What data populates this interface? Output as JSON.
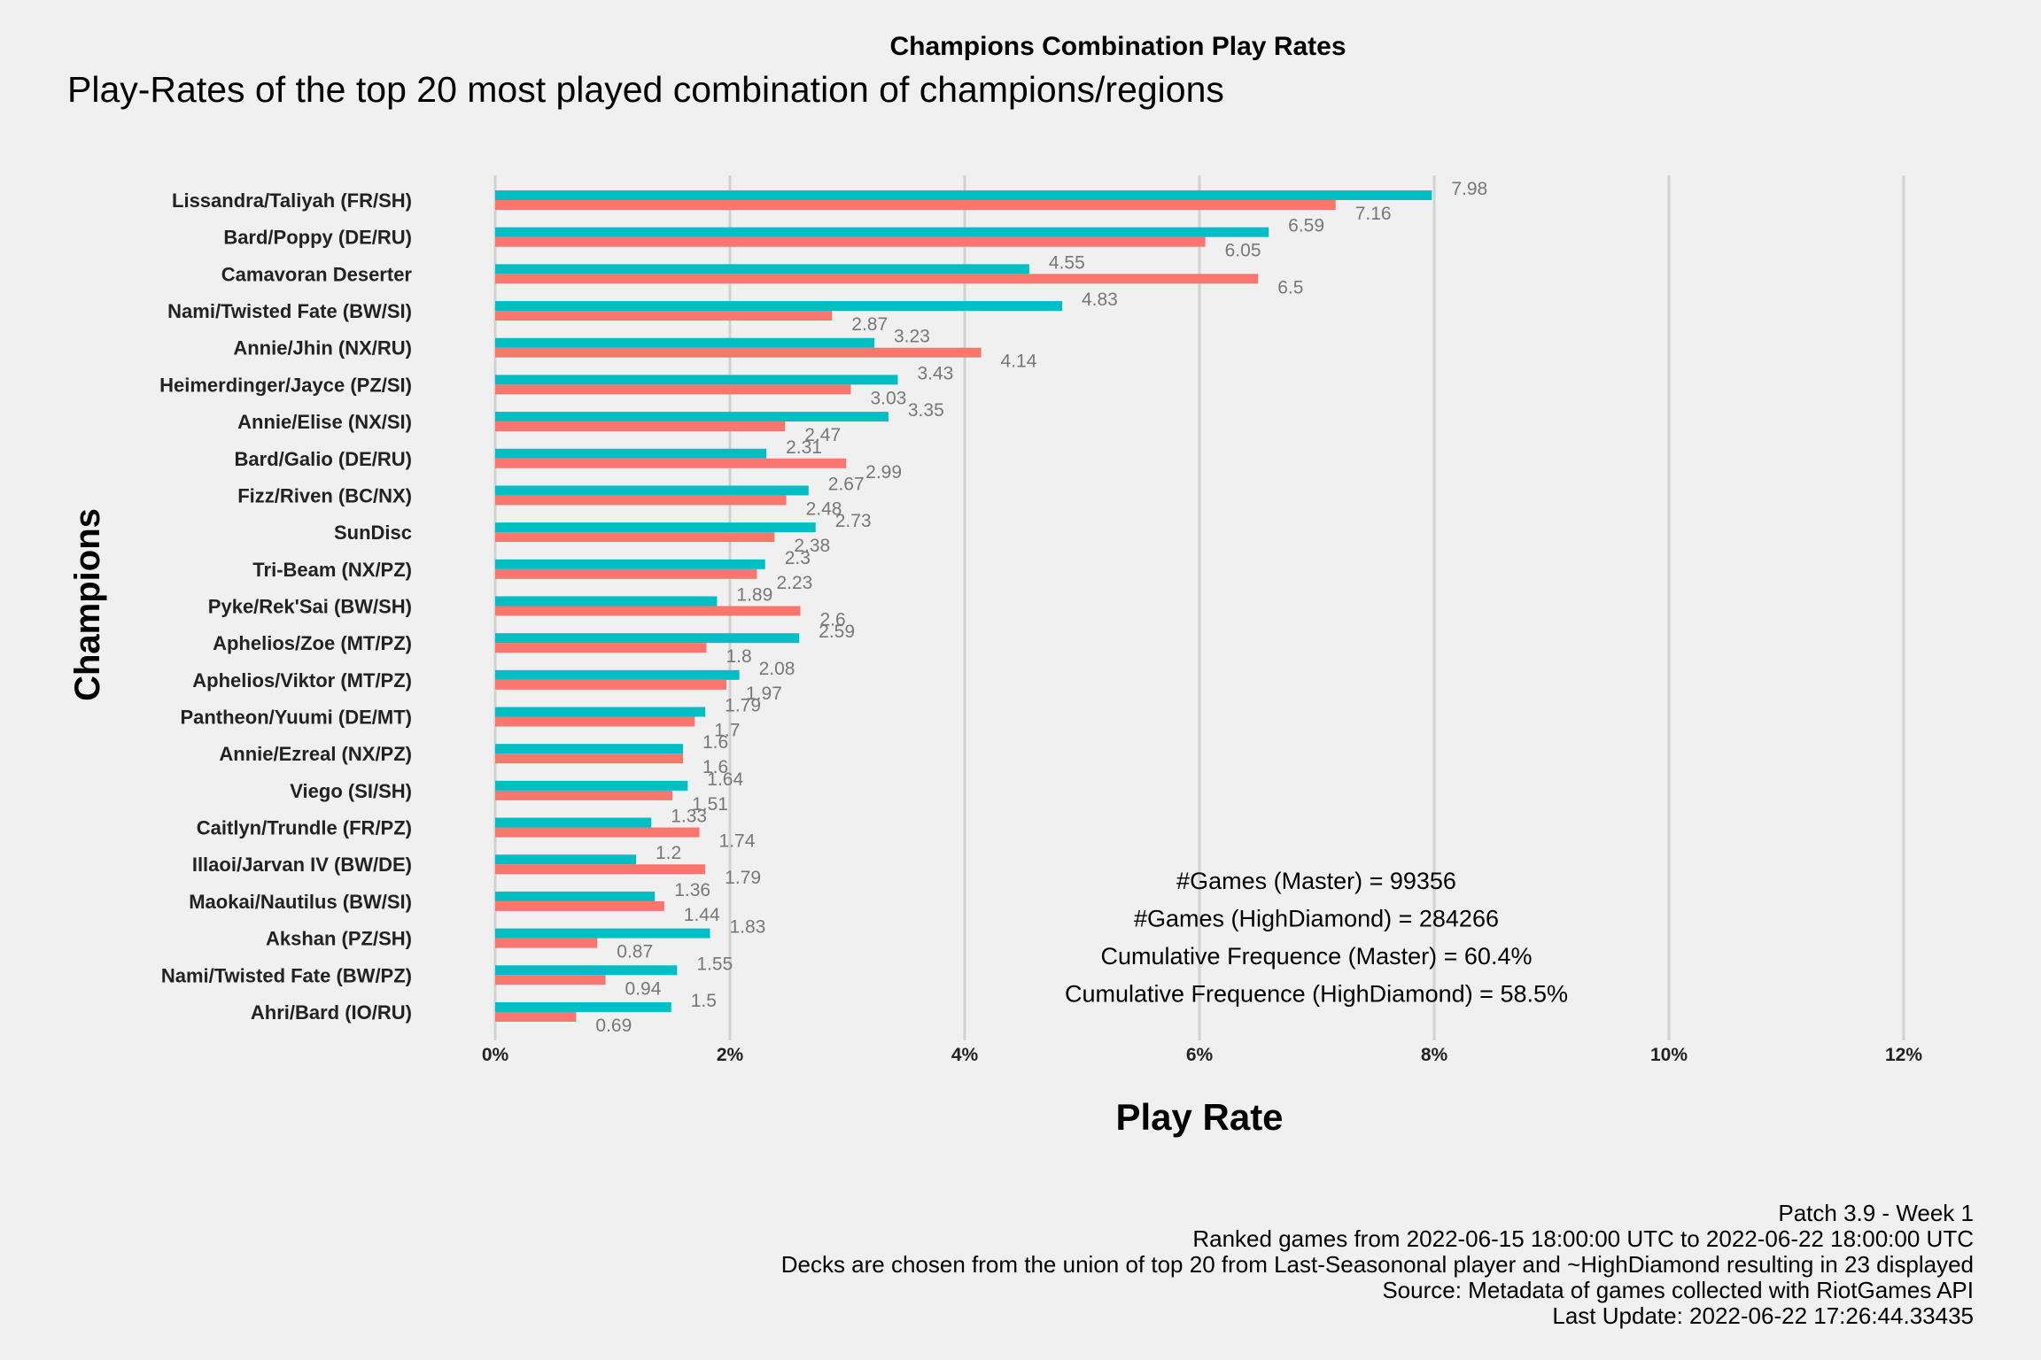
{
  "chart_data": {
    "type": "bar",
    "title": "Champions Combination Play Rates",
    "subtitle": "Play-Rates of the top 20 most played combination of champions/regions",
    "xlabel": "Play Rate",
    "ylabel": "Champions",
    "xlim": [
      0,
      12
    ],
    "xticks": [
      "0%",
      "2%",
      "4%",
      "6%",
      "8%",
      "10%",
      "12%"
    ],
    "orientation": "horizontal",
    "grid": "vertical major lines",
    "categories": [
      "Lissandra/Taliyah (FR/SH)",
      "Bard/Poppy (DE/RU)",
      "Camavoran Deserter",
      "Nami/Twisted Fate (BW/SI)",
      "Annie/Jhin (NX/RU)",
      "Heimerdinger/Jayce (PZ/SI)",
      "Annie/Elise (NX/SI)",
      "Bard/Galio (DE/RU)",
      "Fizz/Riven (BC/NX)",
      "SunDisc",
      "Tri-Beam (NX/PZ)",
      "Pyke/Rek'Sai (BW/SH)",
      "Aphelios/Zoe (MT/PZ)",
      "Aphelios/Viktor (MT/PZ)",
      "Pantheon/Yuumi (DE/MT)",
      "Annie/Ezreal (NX/PZ)",
      "Viego (SI/SH)",
      "Caitlyn/Trundle (FR/PZ)",
      "Illaoi/Jarvan IV (BW/DE)",
      "Maokai/Nautilus (BW/SI)",
      "Akshan (PZ/SH)",
      "Nami/Twisted Fate (BW/PZ)",
      "Ahri/Bard (IO/RU)"
    ],
    "series": [
      {
        "color": "#00bfc4",
        "values": [
          7.98,
          6.59,
          4.55,
          4.83,
          3.23,
          3.43,
          3.35,
          2.31,
          2.67,
          2.73,
          2.3,
          1.89,
          2.59,
          2.08,
          1.79,
          1.6,
          1.64,
          1.33,
          1.2,
          1.36,
          1.83,
          1.55,
          1.5
        ],
        "labels": [
          "7.98",
          "6.59",
          "4.55",
          "4.83",
          "3.23",
          "3.43",
          "3.35",
          "2.31",
          "2.67",
          "2.73",
          "2.3",
          "1.89",
          "2.59",
          "2.08",
          "1.79",
          "1.6",
          "1.64",
          "1.33",
          "1.2",
          "1.36",
          "1.83",
          "1.55",
          "1.5"
        ]
      },
      {
        "color": "#f8766d",
        "values": [
          7.16,
          6.05,
          6.5,
          2.87,
          4.14,
          3.03,
          2.47,
          2.99,
          2.48,
          2.38,
          2.23,
          2.6,
          1.8,
          1.97,
          1.7,
          1.6,
          1.51,
          1.74,
          1.79,
          1.44,
          0.87,
          0.94,
          0.69
        ],
        "labels": [
          "7.16",
          "6.05",
          "6.5",
          "2.87",
          "4.14",
          "3.03",
          "2.47",
          "2.99",
          "2.48",
          "2.38",
          "2.23",
          "2.6",
          "1.8",
          "1.97",
          "1.7",
          "1.6",
          "1.51",
          "1.74",
          "1.79",
          "1.44",
          "0.87",
          "0.94",
          "0.69"
        ]
      }
    ],
    "annotations": [
      "#Games (Master) = 99356",
      "#Games (HighDiamond) = 284266",
      "Cumulative Frequence (Master) = 60.4%",
      "Cumulative Frequence (HighDiamond) = 58.5%"
    ]
  },
  "caption": {
    "lines": [
      "Patch 3.9 - Week 1",
      "Ranked games from 2022-06-15 18:00:00 UTC to 2022-06-22 18:00:00 UTC",
      "Decks are chosen from the union of top 20 from Last-Seasononal player and ~HighDiamond resulting in 23 displayed",
      "Source: Metadata of games collected with RiotGames API",
      "Last Update: 2022-06-22 17:26:44.33435"
    ]
  }
}
